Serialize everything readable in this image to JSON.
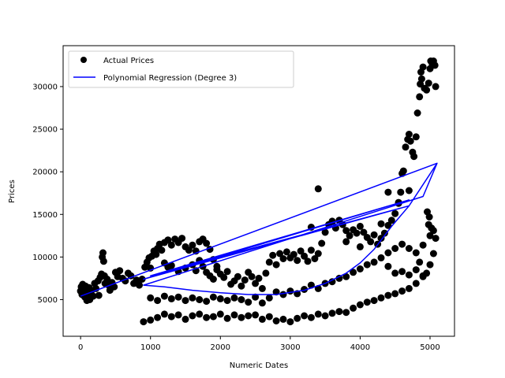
{
  "chart_data": {
    "type": "scatter",
    "xlabel": "Numeric Dates",
    "ylabel": "Prices",
    "xlim": [
      -250,
      5350
    ],
    "ylim": [
      700,
      34800
    ],
    "xticks": [
      0,
      1000,
      2000,
      3000,
      4000,
      5000
    ],
    "yticks": [
      5000,
      10000,
      15000,
      20000,
      25000,
      30000
    ],
    "grid": false,
    "legend_position": "upper-left",
    "series": [
      {
        "name": "Actual Prices",
        "kind": "scatter",
        "color": "#000000",
        "points": [
          [
            0,
            6000
          ],
          [
            10,
            6500
          ],
          [
            20,
            5600
          ],
          [
            30,
            6800
          ],
          [
            40,
            5900
          ],
          [
            50,
            6200
          ],
          [
            60,
            5300
          ],
          [
            70,
            6600
          ],
          [
            80,
            6000
          ],
          [
            90,
            4900
          ],
          [
            100,
            5200
          ],
          [
            110,
            5800
          ],
          [
            120,
            6400
          ],
          [
            130,
            5000
          ],
          [
            140,
            5600
          ],
          [
            160,
            6100
          ],
          [
            180,
            5400
          ],
          [
            200,
            6900
          ],
          [
            220,
            6300
          ],
          [
            250,
            7200
          ],
          [
            260,
            5500
          ],
          [
            280,
            7600
          ],
          [
            300,
            8000
          ],
          [
            310,
            10000
          ],
          [
            320,
            10500
          ],
          [
            330,
            9500
          ],
          [
            340,
            7800
          ],
          [
            350,
            6900
          ],
          [
            380,
            7400
          ],
          [
            400,
            6700
          ],
          [
            420,
            6100
          ],
          [
            450,
            7000
          ],
          [
            480,
            6500
          ],
          [
            500,
            8200
          ],
          [
            530,
            7700
          ],
          [
            560,
            8400
          ],
          [
            600,
            7500
          ],
          [
            640,
            7200
          ],
          [
            680,
            8100
          ],
          [
            720,
            7800
          ],
          [
            760,
            6900
          ],
          [
            800,
            7300
          ],
          [
            840,
            6700
          ],
          [
            880,
            7400
          ],
          [
            920,
            8800
          ],
          [
            950,
            9400
          ],
          [
            980,
            9900
          ],
          [
            1000,
            8700
          ],
          [
            1020,
            10100
          ],
          [
            1050,
            10700
          ],
          [
            1080,
            10300
          ],
          [
            1100,
            11000
          ],
          [
            1130,
            11500
          ],
          [
            1160,
            10800
          ],
          [
            1200,
            11700
          ],
          [
            1250,
            12000
          ],
          [
            1300,
            11400
          ],
          [
            1350,
            12100
          ],
          [
            1400,
            11700
          ],
          [
            1450,
            12200
          ],
          [
            1500,
            11200
          ],
          [
            1550,
            10800
          ],
          [
            1600,
            11400
          ],
          [
            1650,
            10700
          ],
          [
            1700,
            11800
          ],
          [
            1750,
            12100
          ],
          [
            1800,
            11600
          ],
          [
            1850,
            10900
          ],
          [
            1900,
            9700
          ],
          [
            1950,
            8900
          ],
          [
            1200,
            9300
          ],
          [
            1250,
            8800
          ],
          [
            1300,
            9000
          ],
          [
            1400,
            8300
          ],
          [
            1500,
            8700
          ],
          [
            1600,
            9100
          ],
          [
            1650,
            8400
          ],
          [
            1700,
            9600
          ],
          [
            1750,
            8900
          ],
          [
            1800,
            8200
          ],
          [
            1850,
            7800
          ],
          [
            1900,
            7400
          ],
          [
            1950,
            8500
          ],
          [
            2000,
            8000
          ],
          [
            2050,
            7600
          ],
          [
            2100,
            8300
          ],
          [
            2150,
            6800
          ],
          [
            2200,
            7200
          ],
          [
            2250,
            7700
          ],
          [
            2300,
            6600
          ],
          [
            2350,
            7300
          ],
          [
            2400,
            8200
          ],
          [
            2450,
            7700
          ],
          [
            2500,
            6900
          ],
          [
            2550,
            7500
          ],
          [
            2600,
            6300
          ],
          [
            2650,
            8100
          ],
          [
            2700,
            9400
          ],
          [
            2750,
            10200
          ],
          [
            2800,
            9100
          ],
          [
            2850,
            10400
          ],
          [
            2900,
            9800
          ],
          [
            2950,
            10600
          ],
          [
            3000,
            9900
          ],
          [
            3050,
            10300
          ],
          [
            3100,
            9600
          ],
          [
            3150,
            10700
          ],
          [
            3200,
            10100
          ],
          [
            3250,
            9500
          ],
          [
            3300,
            10800
          ],
          [
            3350,
            9800
          ],
          [
            3400,
            10400
          ],
          [
            3450,
            11600
          ],
          [
            3500,
            12900
          ],
          [
            3550,
            13800
          ],
          [
            3600,
            14200
          ],
          [
            3650,
            13400
          ],
          [
            3700,
            14300
          ],
          [
            3750,
            13800
          ],
          [
            3800,
            13100
          ],
          [
            3850,
            12500
          ],
          [
            3900,
            13200
          ],
          [
            3950,
            12800
          ],
          [
            4000,
            13600
          ],
          [
            4050,
            12900
          ],
          [
            4100,
            12300
          ],
          [
            4150,
            11800
          ],
          [
            4200,
            12600
          ],
          [
            4250,
            11500
          ],
          [
            4300,
            12200
          ],
          [
            4350,
            12800
          ],
          [
            4400,
            13700
          ],
          [
            4450,
            14300
          ],
          [
            4500,
            15100
          ],
          [
            4550,
            16300
          ],
          [
            4580,
            17600
          ],
          [
            4600,
            19800
          ],
          [
            4620,
            20100
          ],
          [
            4650,
            22900
          ],
          [
            4680,
            23800
          ],
          [
            4700,
            24400
          ],
          [
            4720,
            23600
          ],
          [
            4750,
            22300
          ],
          [
            4770,
            21800
          ],
          [
            4800,
            24100
          ],
          [
            4820,
            26900
          ],
          [
            4850,
            28800
          ],
          [
            4860,
            30300
          ],
          [
            4870,
            31700
          ],
          [
            4880,
            30900
          ],
          [
            4900,
            32300
          ],
          [
            4920,
            29800
          ],
          [
            4950,
            29600
          ],
          [
            4980,
            30400
          ],
          [
            5000,
            32100
          ],
          [
            5010,
            33000
          ],
          [
            5030,
            32700
          ],
          [
            5050,
            33000
          ],
          [
            5070,
            32500
          ],
          [
            5080,
            30000
          ],
          [
            1000,
            5200
          ],
          [
            1100,
            4900
          ],
          [
            1200,
            5400
          ],
          [
            1300,
            5100
          ],
          [
            1400,
            5300
          ],
          [
            1500,
            4900
          ],
          [
            1600,
            5200
          ],
          [
            1700,
            5000
          ],
          [
            1800,
            4800
          ],
          [
            1900,
            5300
          ],
          [
            2000,
            5100
          ],
          [
            2100,
            4900
          ],
          [
            2200,
            5200
          ],
          [
            2300,
            5000
          ],
          [
            2400,
            4700
          ],
          [
            2500,
            5300
          ],
          [
            2600,
            4600
          ],
          [
            2700,
            5200
          ],
          [
            2800,
            5900
          ],
          [
            2900,
            5600
          ],
          [
            3000,
            6000
          ],
          [
            3100,
            5700
          ],
          [
            3200,
            6200
          ],
          [
            3300,
            6700
          ],
          [
            3400,
            6300
          ],
          [
            3500,
            6900
          ],
          [
            3600,
            7100
          ],
          [
            3700,
            7500
          ],
          [
            3800,
            7700
          ],
          [
            3900,
            8200
          ],
          [
            4000,
            8600
          ],
          [
            4100,
            9100
          ],
          [
            4200,
            9400
          ],
          [
            4300,
            9900
          ],
          [
            4400,
            10500
          ],
          [
            4500,
            11000
          ],
          [
            4600,
            11500
          ],
          [
            4700,
            11000
          ],
          [
            4800,
            10500
          ],
          [
            4900,
            11400
          ],
          [
            5000,
            12500
          ],
          [
            5050,
            13100
          ],
          [
            5080,
            12200
          ],
          [
            4980,
            13800
          ],
          [
            4960,
            15300
          ],
          [
            4990,
            14700
          ],
          [
            5020,
            13400
          ],
          [
            4400,
            8900
          ],
          [
            4500,
            8100
          ],
          [
            4600,
            8300
          ],
          [
            4700,
            7900
          ],
          [
            4800,
            8500
          ],
          [
            4900,
            7700
          ],
          [
            4950,
            8100
          ],
          [
            4850,
            9400
          ],
          [
            900,
            2400
          ],
          [
            1000,
            2600
          ],
          [
            1100,
            2900
          ],
          [
            1200,
            3300
          ],
          [
            1300,
            3000
          ],
          [
            1400,
            3200
          ],
          [
            1500,
            2700
          ],
          [
            1600,
            3100
          ],
          [
            1700,
            3300
          ],
          [
            1800,
            2900
          ],
          [
            1900,
            3000
          ],
          [
            2000,
            3300
          ],
          [
            2100,
            2800
          ],
          [
            2200,
            3200
          ],
          [
            2300,
            2900
          ],
          [
            2400,
            3100
          ],
          [
            2500,
            3200
          ],
          [
            2600,
            2700
          ],
          [
            2700,
            3000
          ],
          [
            2800,
            2500
          ],
          [
            2900,
            2700
          ],
          [
            3000,
            2400
          ],
          [
            3100,
            2800
          ],
          [
            3200,
            3100
          ],
          [
            3300,
            2900
          ],
          [
            3400,
            3300
          ],
          [
            3500,
            3100
          ],
          [
            3600,
            3400
          ],
          [
            3700,
            3600
          ],
          [
            3800,
            3500
          ],
          [
            3900,
            4000
          ],
          [
            4000,
            4400
          ],
          [
            4100,
            4700
          ],
          [
            4200,
            4900
          ],
          [
            4300,
            5200
          ],
          [
            4400,
            5500
          ],
          [
            4500,
            5700
          ],
          [
            4600,
            6000
          ],
          [
            4700,
            6300
          ],
          [
            4800,
            6900
          ],
          [
            4900,
            7800
          ],
          [
            5000,
            9100
          ],
          [
            5050,
            10400
          ],
          [
            3400,
            18000
          ],
          [
            3600,
            14100
          ],
          [
            3700,
            14300
          ],
          [
            4400,
            17600
          ],
          [
            4700,
            17800
          ],
          [
            4550,
            16400
          ],
          [
            3300,
            13500
          ],
          [
            4300,
            13900
          ],
          [
            4000,
            11200
          ],
          [
            3800,
            11800
          ]
        ]
      },
      {
        "name": "Polynomial Regression (Degree 3)",
        "kind": "line",
        "color": "#0000ff",
        "points": [
          [
            0,
            5400
          ],
          [
            5100,
            21000
          ],
          [
            4700,
            16000
          ],
          [
            1000,
            7800
          ],
          [
            4700,
            16700
          ],
          [
            900,
            7400
          ],
          [
            4700,
            16000
          ],
          [
            4450,
            13600
          ],
          [
            4200,
            10900
          ],
          [
            4000,
            9300
          ],
          [
            3800,
            8100
          ],
          [
            3500,
            6900
          ],
          [
            3200,
            6100
          ],
          [
            2800,
            5600
          ],
          [
            2400,
            5600
          ],
          [
            2000,
            5800
          ],
          [
            1600,
            6100
          ],
          [
            1200,
            6500
          ],
          [
            900,
            6700
          ],
          [
            4900,
            17100
          ],
          [
            5100,
            21000
          ]
        ]
      }
    ]
  }
}
